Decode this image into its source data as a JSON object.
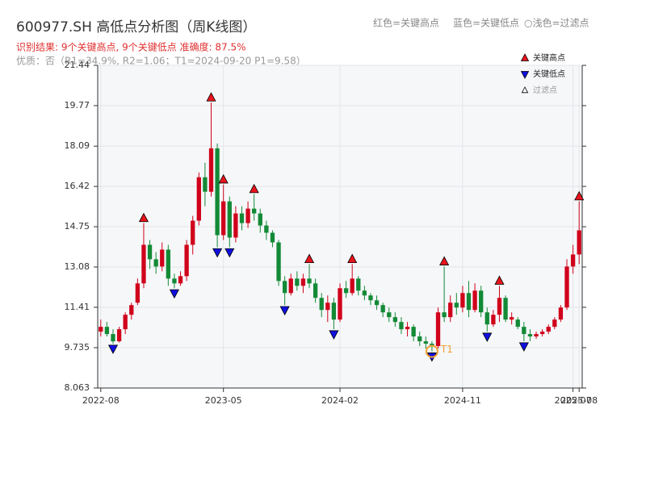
{
  "chart_data": {
    "type": "candlestick",
    "title": "600977.SH 高低点分析图（周K线图）",
    "subtitle": "识别结果: 9个关键高点, 9个关键低点  准确度: 87.5%",
    "note": "优质：否（R1=34.9%, R2=1.06；T1=2024-09-20 P1=9.58）",
    "top_legend": [
      "红色=关键高点",
      "蓝色=关键低点",
      "○浅色=过滤点"
    ],
    "categories": [
      "2022-08",
      null,
      null,
      null,
      null,
      null,
      null,
      null,
      null,
      null,
      null,
      null,
      null,
      null,
      null,
      null,
      null,
      null,
      null,
      null,
      "2023-05",
      null,
      null,
      null,
      null,
      null,
      null,
      null,
      null,
      null,
      null,
      null,
      null,
      null,
      null,
      null,
      null,
      null,
      null,
      "2024-02",
      null,
      null,
      null,
      null,
      null,
      null,
      null,
      null,
      null,
      null,
      null,
      null,
      null,
      null,
      null,
      null,
      null,
      null,
      null,
      "2024-11",
      null,
      null,
      null,
      null,
      null,
      null,
      null,
      null,
      null,
      null,
      null,
      null,
      null,
      null,
      null,
      null,
      null,
      "2025-07",
      "2025-08"
    ],
    "open": [
      10.4,
      10.6,
      10.3,
      10.0,
      10.5,
      11.1,
      11.6,
      12.4,
      14.0,
      13.4,
      13.1,
      13.8,
      12.6,
      12.4,
      12.7,
      14.0,
      15.0,
      16.8,
      16.2,
      18.0,
      14.4,
      15.8,
      14.3,
      15.3,
      14.9,
      15.5,
      15.3,
      14.8,
      14.5,
      14.1,
      12.5,
      12.0,
      12.6,
      12.3,
      12.6,
      12.4,
      11.8,
      11.3,
      11.6,
      10.9,
      12.2,
      12.0,
      12.6,
      12.1,
      11.9,
      11.7,
      11.5,
      11.2,
      11.0,
      10.8,
      10.5,
      10.6,
      10.2,
      10.0,
      9.9,
      9.8,
      11.2,
      11.0,
      11.6,
      11.4,
      12.0,
      11.3,
      12.1,
      11.2,
      10.7,
      11.1,
      11.8,
      10.9,
      10.9,
      10.6,
      10.3,
      10.2,
      10.3,
      10.4,
      10.6,
      10.9,
      11.4,
      13.1,
      13.6
    ],
    "high": [
      10.9,
      10.8,
      10.5,
      10.6,
      11.2,
      11.6,
      12.6,
      14.9,
      14.2,
      13.7,
      14.1,
      14.0,
      12.8,
      12.9,
      14.2,
      15.2,
      17.0,
      17.4,
      19.9,
      18.2,
      16.5,
      16.0,
      15.6,
      15.6,
      15.8,
      16.1,
      15.5,
      15.0,
      14.6,
      14.2,
      12.7,
      12.8,
      12.9,
      12.8,
      13.2,
      12.6,
      12.0,
      11.9,
      11.8,
      12.4,
      12.5,
      13.2,
      12.7,
      12.3,
      12.0,
      11.9,
      11.6,
      11.4,
      11.2,
      11.0,
      10.8,
      10.7,
      10.4,
      10.2,
      10.0,
      11.4,
      13.1,
      11.9,
      12.0,
      12.3,
      12.5,
      12.4,
      12.3,
      11.4,
      11.3,
      12.3,
      11.9,
      11.2,
      11.0,
      10.8,
      10.5,
      10.4,
      10.5,
      10.7,
      11.0,
      11.5,
      13.4,
      14.0,
      15.8
    ],
    "low": [
      10.2,
      10.2,
      9.9,
      9.95,
      10.3,
      10.9,
      11.5,
      12.2,
      13.0,
      12.8,
      12.9,
      12.3,
      12.2,
      12.3,
      12.5,
      13.6,
      14.8,
      15.6,
      16.0,
      13.9,
      14.2,
      13.9,
      14.1,
      14.6,
      14.7,
      15.0,
      14.5,
      14.2,
      13.9,
      12.3,
      11.5,
      11.9,
      12.1,
      12.0,
      12.2,
      11.6,
      11.0,
      10.8,
      10.5,
      10.8,
      11.8,
      11.9,
      11.9,
      11.7,
      11.5,
      11.3,
      11.0,
      10.8,
      10.6,
      10.3,
      10.2,
      10.0,
      9.8,
      9.7,
      9.58,
      9.7,
      10.8,
      10.8,
      11.1,
      11.2,
      11.0,
      11.2,
      11.0,
      10.4,
      10.6,
      10.8,
      10.8,
      10.7,
      10.5,
      10.0,
      10.0,
      10.1,
      10.2,
      10.3,
      10.5,
      10.8,
      11.3,
      12.8,
      13.2
    ],
    "close": [
      10.6,
      10.3,
      10.0,
      10.5,
      11.1,
      11.5,
      12.4,
      14.0,
      13.4,
      13.1,
      13.8,
      12.6,
      12.4,
      12.7,
      14.0,
      15.0,
      16.8,
      16.2,
      18.0,
      14.4,
      15.8,
      14.3,
      15.3,
      14.9,
      15.5,
      15.3,
      14.8,
      14.5,
      14.1,
      12.5,
      12.0,
      12.6,
      12.3,
      12.6,
      12.4,
      11.8,
      11.3,
      11.6,
      10.9,
      12.2,
      12.0,
      12.6,
      12.1,
      11.9,
      11.7,
      11.5,
      11.2,
      11.0,
      10.8,
      10.5,
      10.6,
      10.2,
      10.0,
      9.9,
      9.8,
      11.2,
      11.0,
      11.6,
      11.4,
      12.0,
      11.3,
      12.1,
      11.2,
      10.7,
      11.1,
      11.8,
      10.9,
      11.0,
      10.6,
      10.3,
      10.2,
      10.3,
      10.4,
      10.6,
      10.9,
      11.4,
      13.1,
      13.6,
      14.6
    ],
    "up_color": "#d0021b",
    "down_color": "#138a36",
    "series": [
      {
        "name": "关键高点",
        "color": "#e8141c",
        "marker": "up",
        "values": [
          null,
          null,
          null,
          null,
          null,
          null,
          null,
          14.9,
          null,
          null,
          null,
          null,
          null,
          null,
          null,
          null,
          null,
          null,
          19.9,
          null,
          16.5,
          null,
          null,
          null,
          null,
          16.1,
          null,
          null,
          null,
          null,
          null,
          null,
          null,
          null,
          13.2,
          null,
          null,
          null,
          null,
          null,
          null,
          13.2,
          null,
          null,
          null,
          null,
          null,
          null,
          null,
          null,
          null,
          null,
          null,
          null,
          null,
          null,
          13.1,
          null,
          null,
          null,
          null,
          null,
          null,
          null,
          null,
          12.3,
          null,
          null,
          null,
          null,
          null,
          null,
          null,
          null,
          null,
          null,
          null,
          null,
          15.8
        ]
      },
      {
        "name": "关键低点",
        "color": "#1010e0",
        "marker": "down",
        "values": [
          null,
          null,
          9.9,
          null,
          null,
          null,
          null,
          null,
          null,
          null,
          null,
          null,
          12.2,
          null,
          null,
          null,
          null,
          null,
          null,
          13.9,
          null,
          13.9,
          null,
          null,
          null,
          null,
          null,
          null,
          null,
          null,
          11.5,
          null,
          null,
          null,
          null,
          null,
          null,
          null,
          10.5,
          null,
          null,
          null,
          null,
          null,
          null,
          null,
          null,
          null,
          null,
          null,
          null,
          null,
          null,
          null,
          9.58,
          null,
          null,
          null,
          null,
          null,
          null,
          null,
          null,
          10.4,
          null,
          null,
          null,
          null,
          null,
          10.0,
          null,
          null,
          null,
          null,
          null,
          null,
          null,
          null,
          null
        ]
      },
      {
        "name": "过滤点",
        "color": "#f0a030",
        "marker": "circle",
        "label": "T1",
        "values": [
          null,
          null,
          null,
          null,
          null,
          null,
          null,
          null,
          null,
          null,
          null,
          null,
          null,
          null,
          null,
          null,
          null,
          null,
          null,
          null,
          null,
          null,
          null,
          null,
          null,
          null,
          null,
          null,
          null,
          null,
          null,
          null,
          null,
          null,
          null,
          null,
          null,
          null,
          null,
          null,
          null,
          null,
          null,
          null,
          null,
          null,
          null,
          null,
          null,
          null,
          null,
          null,
          null,
          null,
          9.58,
          null,
          null,
          null,
          null,
          null,
          null,
          null,
          null,
          null,
          null,
          null,
          null,
          null,
          null,
          null,
          null,
          null,
          null,
          null,
          null,
          null,
          null,
          null,
          null
        ]
      }
    ],
    "ylim": [
      8.063,
      21.44
    ],
    "yticks": [
      8.063,
      9.735,
      11.41,
      13.08,
      14.75,
      16.42,
      18.09,
      19.77,
      21.44
    ],
    "grid": true
  }
}
